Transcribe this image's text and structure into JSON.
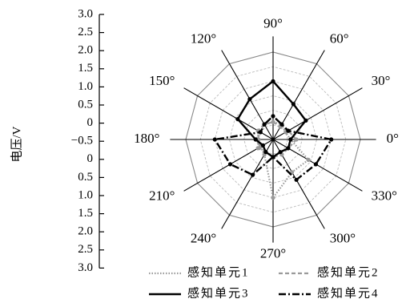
{
  "chart_data": {
    "type": "radar",
    "ylabel": "电压/V",
    "radial_tick_labels": [
      "3.0",
      "2.5",
      "2.0",
      "1.5",
      "1.0",
      "0.5",
      "0",
      "−0.5",
      "0",
      "0.5",
      "1.0",
      "1.5",
      "2.0",
      "2.5",
      "3.0"
    ],
    "angles_deg": [
      0,
      30,
      60,
      90,
      120,
      150,
      180,
      210,
      240,
      270,
      300,
      330
    ],
    "angle_labels": [
      "0°",
      "30°",
      "60°",
      "90°",
      "120°",
      "150°",
      "180°",
      "210°",
      "240°",
      "270°",
      "300°",
      "330°"
    ],
    "rlim": [
      0,
      3.0
    ],
    "ring_step": 0.5,
    "series": [
      {
        "name": "感知单元1",
        "color": "#9a9a9a",
        "style": "dotted",
        "values": [
          0.6,
          0.5,
          0.6,
          0.6,
          0.6,
          0.5,
          0.6,
          0.5,
          0.6,
          2.0,
          1.3,
          1.4
        ]
      },
      {
        "name": "感知单元2",
        "color": "#9a9a9a",
        "style": "dashed",
        "values": [
          0.8,
          0.6,
          0.5,
          0.6,
          0.6,
          0.6,
          0.5,
          0.6,
          0.5,
          0.6,
          0.6,
          0.6
        ]
      },
      {
        "name": "感知单元3",
        "color": "#000000",
        "style": "solid",
        "values": [
          0.6,
          1.3,
          1.4,
          2.0,
          1.6,
          1.4,
          0.6,
          0.4,
          0.5,
          0.6,
          0.5,
          0.6
        ]
      },
      {
        "name": "感知单元4",
        "color": "#000000",
        "style": "dashdot",
        "values": [
          2.0,
          0.6,
          0.6,
          0.8,
          0.6,
          0.5,
          2.0,
          1.7,
          1.4,
          0.6,
          1.6,
          1.7
        ]
      }
    ],
    "legend_position": "bottom-right"
  }
}
